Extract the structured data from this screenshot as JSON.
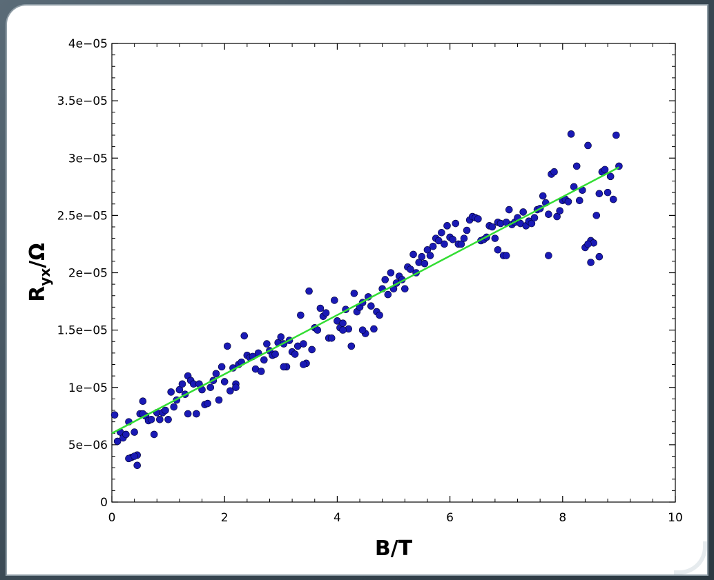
{
  "chart_data": {
    "type": "scatter",
    "xlabel": "B/T",
    "ylabel_main": "R",
    "ylabel_sub": "yx",
    "ylabel_tail": "/Ω",
    "xlim": [
      0,
      10
    ],
    "ylim": [
      0,
      4e-05
    ],
    "x_ticks": [
      0,
      2,
      4,
      6,
      8,
      10
    ],
    "x_tick_labels": [
      "0",
      "2",
      "4",
      "6",
      "8",
      "10"
    ],
    "y_ticks": [
      0,
      5e-06,
      1e-05,
      1.5e-05,
      2e-05,
      2.5e-05,
      3e-05,
      3.5e-05,
      4e-05
    ],
    "y_tick_labels": [
      "0",
      "5e−06",
      "1e−05",
      "1.5e−05",
      "2e−05",
      "2.5e−05",
      "3e−05",
      "3.5e−05",
      "4e−05"
    ],
    "grid": false,
    "series": [
      {
        "kind": "points",
        "color": "#1a1ab5",
        "x": [
          0.05,
          0.1,
          0.15,
          0.2,
          0.25,
          0.3,
          0.35,
          0.4,
          0.45,
          0.5,
          0.55,
          0.6,
          0.65,
          0.7,
          0.75,
          0.8,
          0.85,
          0.9,
          0.95,
          1.0,
          1.05,
          1.1,
          1.15,
          1.2,
          1.25,
          1.3,
          1.35,
          1.4,
          1.45,
          1.5,
          1.55,
          1.6,
          1.65,
          1.7,
          1.75,
          1.8,
          1.85,
          1.9,
          1.95,
          2.0,
          2.05,
          2.1,
          2.15,
          2.2,
          2.25,
          2.3,
          2.35,
          2.4,
          2.45,
          2.5,
          2.55,
          2.6,
          2.65,
          2.7,
          2.75,
          2.8,
          2.85,
          2.9,
          2.95,
          3.0,
          3.05,
          3.1,
          3.15,
          3.2,
          3.25,
          3.3,
          3.35,
          3.4,
          3.45,
          3.5,
          3.55,
          3.6,
          3.65,
          3.7,
          3.75,
          3.8,
          3.85,
          3.9,
          3.95,
          4.0,
          4.05,
          4.1,
          4.15,
          4.2,
          4.25,
          4.3,
          4.35,
          4.4,
          4.45,
          4.5,
          4.55,
          4.6,
          4.65,
          4.7,
          4.75,
          4.8,
          4.85,
          4.9,
          4.95,
          5.0,
          5.05,
          5.1,
          5.15,
          5.2,
          5.25,
          5.3,
          5.35,
          5.4,
          5.45,
          5.5,
          5.55,
          5.6,
          5.65,
          5.7,
          5.75,
          5.8,
          5.85,
          5.9,
          5.95,
          6.0,
          6.05,
          6.1,
          6.15,
          6.2,
          6.25,
          6.3,
          6.35,
          6.4,
          6.45,
          6.5,
          6.55,
          6.6,
          6.65,
          6.7,
          6.75,
          6.8,
          6.85,
          6.9,
          6.95,
          7.0,
          7.05,
          7.1,
          7.15,
          7.2,
          7.25,
          7.3,
          7.35,
          7.4,
          7.45,
          7.5,
          7.55,
          7.6,
          7.65,
          7.7,
          7.75,
          7.8,
          7.85,
          7.9,
          7.95,
          8.0,
          8.05,
          8.1,
          8.15,
          8.2,
          8.25,
          8.3,
          8.35,
          8.4,
          8.45,
          8.5,
          8.55,
          8.6,
          8.65,
          8.7,
          8.75,
          8.8,
          8.85,
          8.9,
          8.95,
          9.0,
          0.3,
          0.4,
          0.45,
          0.55,
          1.35,
          1.5,
          2.2,
          3.05,
          3.4,
          4.1,
          4.45,
          6.85,
          7.0,
          7.75,
          8.45,
          8.5,
          8.65
        ],
        "y": [
          7.6e-06,
          5.3e-06,
          6.1e-06,
          5.6e-06,
          5.9e-06,
          7e-06,
          3.9e-06,
          6.1e-06,
          4.1e-06,
          7.7e-06,
          8.8e-06,
          7.5e-06,
          7.1e-06,
          7.2e-06,
          5.9e-06,
          7.8e-06,
          7.2e-06,
          7.8e-06,
          8e-06,
          7.2e-06,
          9.6e-06,
          8.3e-06,
          8.9e-06,
          9.8e-06,
          1.03e-05,
          9.4e-06,
          1.1e-05,
          1.06e-05,
          1.03e-05,
          7.7e-06,
          1.03e-05,
          9.8e-06,
          8.5e-06,
          8.6e-06,
          1e-05,
          1.06e-05,
          1.12e-05,
          8.9e-06,
          1.18e-05,
          1.05e-05,
          1.36e-05,
          9.7e-06,
          1.17e-05,
          1.03e-05,
          1.2e-05,
          1.22e-05,
          1.45e-05,
          1.28e-05,
          1.26e-05,
          1.27e-05,
          1.16e-05,
          1.3e-05,
          1.14e-05,
          1.24e-05,
          1.38e-05,
          1.32e-05,
          1.28e-05,
          1.29e-05,
          1.39e-05,
          1.44e-05,
          1.38e-05,
          1.18e-05,
          1.41e-05,
          1.31e-05,
          1.29e-05,
          1.36e-05,
          1.63e-05,
          1.38e-05,
          1.21e-05,
          1.84e-05,
          1.33e-05,
          1.52e-05,
          1.5e-05,
          1.69e-05,
          1.62e-05,
          1.65e-05,
          1.43e-05,
          1.43e-05,
          1.76e-05,
          1.58e-05,
          1.52e-05,
          1.56e-05,
          1.68e-05,
          1.51e-05,
          1.36e-05,
          1.82e-05,
          1.66e-05,
          1.7e-05,
          1.74e-05,
          1.47e-05,
          1.79e-05,
          1.71e-05,
          1.51e-05,
          1.66e-05,
          1.63e-05,
          1.86e-05,
          1.94e-05,
          1.81e-05,
          2e-05,
          1.86e-05,
          1.91e-05,
          1.97e-05,
          1.94e-05,
          1.86e-05,
          2.05e-05,
          2.03e-05,
          2.16e-05,
          2e-05,
          2.09e-05,
          2.14e-05,
          2.08e-05,
          2.2e-05,
          2.15e-05,
          2.23e-05,
          2.3e-05,
          2.28e-05,
          2.35e-05,
          2.25e-05,
          2.41e-05,
          2.31e-05,
          2.29e-05,
          2.43e-05,
          2.25e-05,
          2.25e-05,
          2.3e-05,
          2.37e-05,
          2.46e-05,
          2.49e-05,
          2.48e-05,
          2.47e-05,
          2.28e-05,
          2.29e-05,
          2.31e-05,
          2.41e-05,
          2.4e-05,
          2.3e-05,
          2.44e-05,
          2.43e-05,
          2.15e-05,
          2.44e-05,
          2.55e-05,
          2.42e-05,
          2.44e-05,
          2.48e-05,
          2.43e-05,
          2.53e-05,
          2.41e-05,
          2.45e-05,
          2.43e-05,
          2.48e-05,
          2.55e-05,
          2.56e-05,
          2.67e-05,
          2.61e-05,
          2.51e-05,
          2.86e-05,
          2.88e-05,
          2.49e-05,
          2.54e-05,
          2.63e-05,
          2.64e-05,
          2.62e-05,
          3.21e-05,
          2.75e-05,
          2.93e-05,
          2.63e-05,
          2.72e-05,
          2.22e-05,
          3.11e-05,
          2.28e-05,
          2.26e-05,
          2.5e-05,
          2.69e-05,
          2.88e-05,
          2.9e-05,
          2.7e-05,
          2.84e-05,
          2.64e-05,
          3.2e-05,
          2.93e-05,
          3.8e-06,
          4e-06,
          3.2e-06,
          7.7e-06,
          7.7e-06,
          7.7e-06,
          1e-05,
          1.18e-05,
          1.2e-05,
          1.5e-05,
          1.5e-05,
          2.2e-05,
          2.15e-05,
          2.15e-05,
          2.25e-05,
          2.09e-05,
          2.14e-05
        ]
      },
      {
        "kind": "fit-line",
        "color": "#33dd33",
        "x": [
          0,
          9.0
        ],
        "y": [
          6e-06,
          2.92e-05
        ]
      }
    ]
  }
}
